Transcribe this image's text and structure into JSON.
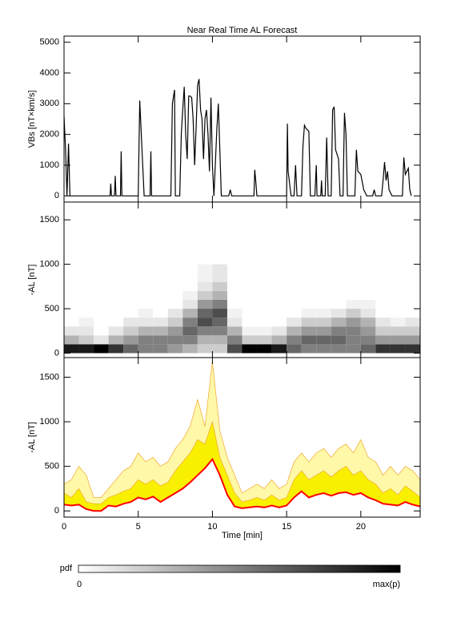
{
  "chart_data": [
    {
      "type": "line",
      "title": "Near Real Time AL Forecast",
      "ylabel": "VBs [nT×km/s]",
      "color": "#000000",
      "x": [
        0,
        0.1,
        0.2,
        0.3,
        0.4,
        3.1,
        3.15,
        3.2,
        3.4,
        3.45,
        3.5,
        3.8,
        3.85,
        3.9,
        5.0,
        5.1,
        5.3,
        5.4,
        5.8,
        5.85,
        5.9,
        7.2,
        7.3,
        7.45,
        7.5,
        7.8,
        7.9,
        8.0,
        8.1,
        8.2,
        8.3,
        8.4,
        8.5,
        8.6,
        8.7,
        8.8,
        8.9,
        9.0,
        9.1,
        9.2,
        9.3,
        9.4,
        9.5,
        9.6,
        9.7,
        9.8,
        9.9,
        10.0,
        10.1,
        10.3,
        10.4,
        10.5,
        10.6,
        11.1,
        11.2,
        11.3,
        12.8,
        12.85,
        12.9,
        13.0,
        15.0,
        15.05,
        15.1,
        15.3,
        15.5,
        15.6,
        15.7,
        16.0,
        16.1,
        16.2,
        16.3,
        16.5,
        16.6,
        16.9,
        17.0,
        17.05,
        17.3,
        17.35,
        17.4,
        17.6,
        17.7,
        17.8,
        18.0,
        18.1,
        18.2,
        18.3,
        18.5,
        18.6,
        18.8,
        18.9,
        19.0,
        19.1,
        19.6,
        19.7,
        19.8,
        20.0,
        20.2,
        20.4,
        20.8,
        20.9,
        21.0,
        21.4,
        21.5,
        21.6,
        21.7,
        21.8,
        21.9,
        22.1,
        22.8,
        22.9,
        23.0,
        23.2,
        23.3,
        23.4
      ],
      "values": [
        2600,
        1500,
        0,
        1700,
        0,
        0,
        400,
        0,
        0,
        650,
        0,
        0,
        1450,
        0,
        0,
        3100,
        1000,
        0,
        0,
        1450,
        0,
        0,
        3000,
        3450,
        0,
        0,
        2000,
        2800,
        3550,
        2000,
        1200,
        3250,
        3250,
        3200,
        2500,
        1000,
        2200,
        3600,
        3800,
        2800,
        2500,
        1200,
        2500,
        2800,
        2000,
        800,
        3200,
        1000,
        0,
        2200,
        3000,
        1500,
        0,
        0,
        200,
        0,
        0,
        850,
        600,
        0,
        0,
        2350,
        800,
        0,
        0,
        1000,
        0,
        0,
        1600,
        2300,
        2200,
        2100,
        0,
        0,
        1000,
        0,
        0,
        500,
        0,
        0,
        1900,
        0,
        0,
        2800,
        2900,
        1500,
        1200,
        0,
        0,
        2700,
        2000,
        0,
        0,
        1500,
        800,
        700,
        200,
        0,
        0,
        200,
        0,
        0,
        500,
        1100,
        500,
        800,
        200,
        0,
        0,
        1250,
        700,
        900,
        200,
        0
      ],
      "xlim": [
        0,
        24
      ],
      "ylim": [
        -200,
        5200
      ],
      "xticks": [
        0,
        5,
        10,
        15,
        20
      ],
      "yticks": [
        0,
        1000,
        2000,
        3000,
        4000,
        5000
      ]
    },
    {
      "type": "heatmap",
      "ylabel": "-AL [nT]",
      "x_bins": [
        0,
        1,
        2,
        3,
        4,
        5,
        6,
        7,
        8,
        9,
        10,
        11,
        12,
        13,
        14,
        15,
        16,
        17,
        18,
        19,
        20,
        21,
        22,
        23,
        24
      ],
      "y_bins": [
        0,
        100,
        200,
        300,
        400,
        500,
        600,
        700,
        800,
        900,
        1000
      ],
      "z": [
        [
          0.9,
          0.3,
          0.1,
          0,
          0,
          0,
          0,
          0,
          0,
          0
        ],
        [
          0.9,
          0.2,
          0.1,
          0.05,
          0,
          0,
          0,
          0,
          0,
          0
        ],
        [
          1,
          0.1,
          0,
          0,
          0,
          0,
          0,
          0,
          0,
          0
        ],
        [
          0.8,
          0.3,
          0.1,
          0,
          0,
          0,
          0,
          0,
          0,
          0
        ],
        [
          0.6,
          0.4,
          0.2,
          0.1,
          0,
          0,
          0,
          0,
          0,
          0
        ],
        [
          0.5,
          0.5,
          0.3,
          0.1,
          0.05,
          0,
          0,
          0,
          0,
          0
        ],
        [
          0.5,
          0.5,
          0.3,
          0.1,
          0,
          0,
          0,
          0,
          0,
          0
        ],
        [
          0.4,
          0.5,
          0.4,
          0.2,
          0.1,
          0,
          0,
          0,
          0,
          0
        ],
        [
          0.3,
          0.5,
          0.6,
          0.5,
          0.3,
          0.1,
          0.05,
          0,
          0,
          0
        ],
        [
          0.2,
          0.3,
          0.5,
          0.7,
          0.6,
          0.4,
          0.2,
          0.1,
          0.05,
          0.05
        ],
        [
          0.2,
          0.3,
          0.5,
          0.6,
          0.7,
          0.5,
          0.3,
          0.2,
          0.1,
          0.1
        ],
        [
          0.7,
          0.5,
          0.3,
          0.1,
          0.05,
          0,
          0,
          0,
          0,
          0
        ],
        [
          1,
          0.2,
          0.05,
          0,
          0,
          0,
          0,
          0,
          0,
          0
        ],
        [
          1,
          0.2,
          0.05,
          0,
          0,
          0,
          0,
          0,
          0,
          0
        ],
        [
          0.9,
          0.3,
          0.1,
          0,
          0,
          0,
          0,
          0,
          0,
          0
        ],
        [
          0.6,
          0.5,
          0.3,
          0.1,
          0,
          0,
          0,
          0,
          0,
          0
        ],
        [
          0.5,
          0.6,
          0.4,
          0.2,
          0.05,
          0,
          0,
          0,
          0,
          0
        ],
        [
          0.5,
          0.6,
          0.4,
          0.2,
          0.05,
          0,
          0,
          0,
          0,
          0
        ],
        [
          0.5,
          0.6,
          0.5,
          0.3,
          0.1,
          0,
          0,
          0,
          0,
          0
        ],
        [
          0.5,
          0.5,
          0.5,
          0.4,
          0.2,
          0.05,
          0,
          0,
          0,
          0
        ],
        [
          0.6,
          0.5,
          0.4,
          0.3,
          0.1,
          0.05,
          0,
          0,
          0,
          0
        ],
        [
          0.8,
          0.4,
          0.2,
          0.1,
          0,
          0,
          0,
          0,
          0,
          0
        ],
        [
          0.8,
          0.4,
          0.2,
          0.05,
          0,
          0,
          0,
          0,
          0,
          0
        ],
        [
          0.8,
          0.4,
          0.2,
          0.1,
          0,
          0,
          0,
          0,
          0,
          0
        ]
      ],
      "xlim": [
        0,
        24
      ],
      "ylim": [
        -50,
        1700
      ],
      "xticks": [
        0,
        5,
        10,
        15,
        20
      ],
      "yticks": [
        0,
        500,
        1000,
        1500
      ]
    },
    {
      "type": "band",
      "xlabel": "Time [min]",
      "ylabel": "-AL [nT]",
      "edge_color": "#f0a830",
      "x": [
        0,
        0.5,
        1,
        1.5,
        2,
        2.5,
        3,
        3.5,
        4,
        4.5,
        5,
        5.5,
        6,
        6.5,
        7,
        7.5,
        8,
        8.5,
        9,
        9.5,
        10,
        10.5,
        11,
        11.5,
        12,
        12.5,
        13,
        13.5,
        14,
        14.5,
        15,
        15.5,
        16,
        16.5,
        17,
        17.5,
        18,
        18.5,
        19,
        19.5,
        20,
        20.5,
        21,
        21.5,
        22,
        22.5,
        23,
        23.5,
        24
      ],
      "series": [
        {
          "color": "#fff8a8",
          "values": [
            300,
            350,
            500,
            400,
            150,
            150,
            250,
            350,
            450,
            500,
            650,
            550,
            600,
            500,
            550,
            700,
            800,
            950,
            1250,
            950,
            1680,
            900,
            600,
            400,
            200,
            250,
            300,
            250,
            350,
            250,
            300,
            550,
            650,
            550,
            650,
            700,
            600,
            700,
            750,
            650,
            800,
            600,
            550,
            400,
            500,
            400,
            500,
            450,
            350
          ]
        },
        {
          "color": "#f8f000",
          "values": [
            200,
            150,
            250,
            100,
            80,
            80,
            150,
            180,
            220,
            250,
            350,
            300,
            350,
            280,
            320,
            450,
            550,
            650,
            800,
            750,
            1000,
            600,
            400,
            200,
            100,
            120,
            150,
            120,
            180,
            120,
            150,
            350,
            450,
            350,
            400,
            450,
            380,
            450,
            500,
            400,
            450,
            350,
            300,
            200,
            250,
            180,
            280,
            220,
            150
          ]
        },
        {
          "color": "#ff0000",
          "values": [
            70,
            60,
            70,
            20,
            0,
            0,
            60,
            50,
            80,
            100,
            150,
            130,
            160,
            100,
            150,
            200,
            250,
            320,
            400,
            480,
            580,
            400,
            180,
            50,
            30,
            40,
            50,
            40,
            60,
            40,
            60,
            150,
            220,
            150,
            180,
            200,
            170,
            200,
            210,
            180,
            200,
            150,
            120,
            80,
            70,
            60,
            100,
            70,
            50
          ]
        }
      ],
      "xlim": [
        0,
        24
      ],
      "ylim": [
        -70,
        1720
      ],
      "xticks": [
        0,
        5,
        10,
        15,
        20
      ],
      "yticks": [
        0,
        500,
        1000,
        1500
      ]
    }
  ],
  "colorbar": {
    "label": "pdf",
    "min_label": "0",
    "max_label": "max(p)"
  }
}
